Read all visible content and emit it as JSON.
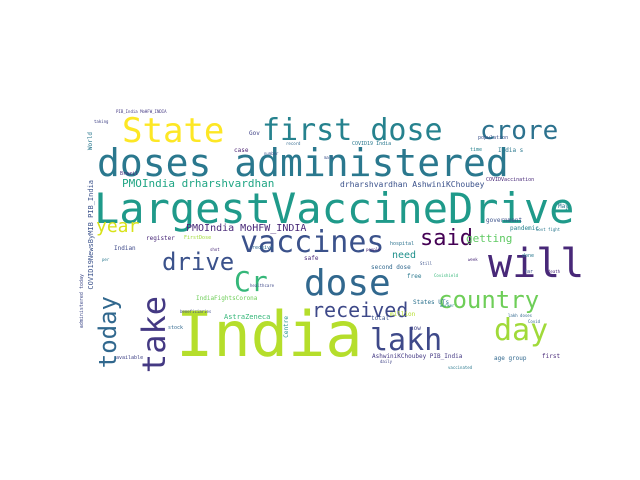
{
  "words": [
    {
      "text": "India",
      "color": "#b5de2b",
      "vertical": false
    },
    {
      "text": "LargestVaccineDrive",
      "color": "#1f9a8a",
      "vertical": false
    },
    {
      "text": "doses administered",
      "color": "#2a788e",
      "vertical": false
    },
    {
      "text": "dose",
      "color": "#31688e",
      "vertical": false
    },
    {
      "text": "vaccines",
      "color": "#3b528b",
      "vertical": false
    },
    {
      "text": "first dose",
      "color": "#26828e",
      "vertical": false
    },
    {
      "text": "State",
      "color": "#fde725",
      "vertical": false
    },
    {
      "text": "will",
      "color": "#482878",
      "vertical": false
    },
    {
      "text": "take",
      "color": "#443983",
      "vertical": true
    },
    {
      "text": "crore",
      "color": "#2c728e",
      "vertical": false
    },
    {
      "text": "lakh",
      "color": "#3e4989",
      "vertical": false
    },
    {
      "text": "Cr",
      "color": "#35b779",
      "vertical": false
    },
    {
      "text": "day",
      "color": "#a0da39",
      "vertical": false
    },
    {
      "text": "country",
      "color": "#6ece58",
      "vertical": false
    },
    {
      "text": "today",
      "color": "#31688e",
      "vertical": true
    },
    {
      "text": "drive",
      "color": "#3b528b",
      "vertical": false
    },
    {
      "text": "said",
      "color": "#440154",
      "vertical": false
    },
    {
      "text": "received",
      "color": "#3e4989",
      "vertical": false
    },
    {
      "text": "year",
      "color": "#d8e219",
      "vertical": false
    },
    {
      "text": "PMOIndia drharshvardhan",
      "color": "#21a685",
      "vertical": false
    },
    {
      "text": "PMOIndia MoHFW_INDIA",
      "color": "#482878",
      "vertical": false
    },
    {
      "text": "drharshvardhan AshwiniKChoubey",
      "color": "#3b528b",
      "vertical": false
    },
    {
      "text": "getting",
      "color": "#5ec962",
      "vertical": false
    },
    {
      "text": "need",
      "color": "#21918c",
      "vertical": false
    },
    {
      "text": "Gov",
      "color": "#414487",
      "vertical": false
    },
    {
      "text": "case",
      "color": "#481f70",
      "vertical": false
    },
    {
      "text": "India s",
      "color": "#2a788e",
      "vertical": false
    },
    {
      "text": "register",
      "color": "#482878",
      "vertical": false
    },
    {
      "text": "Indian",
      "color": "#3e4989",
      "vertical": false
    },
    {
      "text": "million",
      "color": "#b5de2b",
      "vertical": false
    },
    {
      "text": "free",
      "color": "#2a788e",
      "vertical": false
    },
    {
      "text": "second dose",
      "color": "#31688e",
      "vertical": false
    },
    {
      "text": "safe",
      "color": "#482878",
      "vertical": false
    },
    {
      "text": "government",
      "color": "#3b528b",
      "vertical": false
    },
    {
      "text": "pandemic",
      "color": "#26828e",
      "vertical": false
    },
    {
      "text": "States UTs",
      "color": "#2c728e",
      "vertical": false
    },
    {
      "text": "AstraZeneca",
      "color": "#35b779",
      "vertical": false
    },
    {
      "text": "IndiaFightsCorona",
      "color": "#6ece58",
      "vertical": false
    },
    {
      "text": "AshwiniKChoubey PIB_India",
      "color": "#443983",
      "vertical": false
    },
    {
      "text": "age group",
      "color": "#31688e",
      "vertical": false
    },
    {
      "text": "first",
      "color": "#482878",
      "vertical": false
    },
    {
      "text": "total",
      "color": "#3b528b",
      "vertical": false
    },
    {
      "text": "now",
      "color": "#414487",
      "vertical": false
    },
    {
      "text": "May",
      "color": "#2a788e",
      "vertical": false
    },
    {
      "text": "FirstDose",
      "color": "#a0da39",
      "vertical": false
    },
    {
      "text": "receive",
      "color": "#31688e",
      "vertical": false
    },
    {
      "text": "Centre",
      "color": "#21918c",
      "vertical": true
    },
    {
      "text": "COVID19 India",
      "color": "#2a788e",
      "vertical": false
    },
    {
      "text": "population",
      "color": "#3b528b",
      "vertical": false
    },
    {
      "text": "COVIDVaccination",
      "color": "#482878",
      "vertical": false
    },
    {
      "text": "COVID19NewsByMIB PIB_India",
      "color": "#3b528b",
      "vertical": true
    },
    {
      "text": "World",
      "color": "#2a788e",
      "vertical": true
    },
    {
      "text": "administered today",
      "color": "#3e4989",
      "vertical": true
    },
    {
      "text": "available",
      "color": "#414487",
      "vertical": false
    },
    {
      "text": "stock",
      "color": "#31688e",
      "vertical": false
    },
    {
      "text": "Brazil",
      "color": "#482878",
      "vertical": false
    },
    {
      "text": "number",
      "color": "#3b528b",
      "vertical": false
    },
    {
      "text": "hospital",
      "color": "#2c728e",
      "vertical": false
    },
    {
      "text": "lakh doses",
      "color": "#31688e",
      "vertical": false
    },
    {
      "text": "death",
      "color": "#482878",
      "vertical": false
    },
    {
      "text": "done",
      "color": "#2a788e",
      "vertical": false
    },
    {
      "text": "far",
      "color": "#3b528b",
      "vertical": false
    },
    {
      "text": "time",
      "color": "#26828e",
      "vertical": false
    },
    {
      "text": "beneficiaries",
      "color": "#3e4989",
      "vertical": false
    },
    {
      "text": "Covishield",
      "color": "#35b779",
      "vertical": false
    },
    {
      "text": "week",
      "color": "#482878",
      "vertical": false
    },
    {
      "text": "taking",
      "color": "#414487",
      "vertical": false
    },
    {
      "text": "Govt fight",
      "color": "#2a788e",
      "vertical": false
    },
    {
      "text": "PIB_India MoHFW_INDIA",
      "color": "#443983",
      "vertical": false
    },
    {
      "text": "Covid",
      "color": "#31688e",
      "vertical": false
    },
    {
      "text": "shot",
      "color": "#482878",
      "vertical": false
    },
    {
      "text": "Still",
      "color": "#3b528b",
      "vertical": false
    },
    {
      "text": "per",
      "color": "#2a788e",
      "vertical": false
    },
    {
      "text": "record",
      "color": "#31688e",
      "vertical": false
    },
    {
      "text": "healthcare",
      "color": "#3e4989",
      "vertical": false
    },
    {
      "text": "people",
      "color": "#482878",
      "vertical": false
    },
    {
      "text": "worker",
      "color": "#26828e",
      "vertical": false
    },
    {
      "text": "mark",
      "color": "#3b528b",
      "vertical": false
    },
    {
      "text": "daily",
      "color": "#414487",
      "vertical": false
    },
    {
      "text": "vaccinated",
      "color": "#2a788e",
      "vertical": false
    }
  ]
}
